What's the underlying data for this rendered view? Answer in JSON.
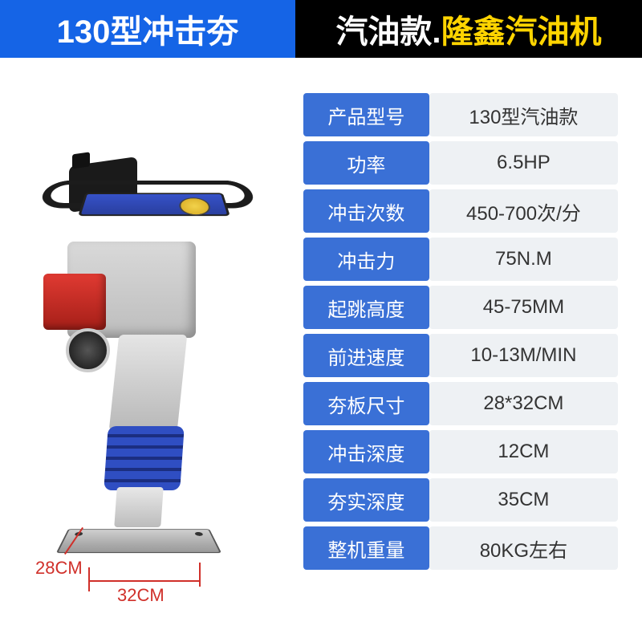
{
  "colors": {
    "title_blue": "#1564e6",
    "title_yellow": "#ffd400",
    "row_label_bg": "#3a70d6",
    "row_value_bg": "#eef1f4",
    "dim_red": "#d0302a"
  },
  "header": {
    "left": "130型冲击夯",
    "right_white": "汽油款.",
    "right_yellow": "隆鑫汽油机"
  },
  "dimensions": {
    "width_label": "28CM",
    "length_label": "32CM"
  },
  "specs": [
    {
      "label": "产品型号",
      "value": "130型汽油款"
    },
    {
      "label": "功率",
      "value": "6.5HP"
    },
    {
      "label": "冲击次数",
      "value": "450-700次/分"
    },
    {
      "label": "冲击力",
      "value": "75N.M"
    },
    {
      "label": "起跳高度",
      "value": "45-75MM"
    },
    {
      "label": "前进速度",
      "value": "10-13M/MIN"
    },
    {
      "label": "夯板尺寸",
      "value": "28*32CM"
    },
    {
      "label": "冲击深度",
      "value": "12CM"
    },
    {
      "label": "夯实深度",
      "value": "35CM"
    },
    {
      "label": "整机重量",
      "value": "80KG左右"
    }
  ]
}
